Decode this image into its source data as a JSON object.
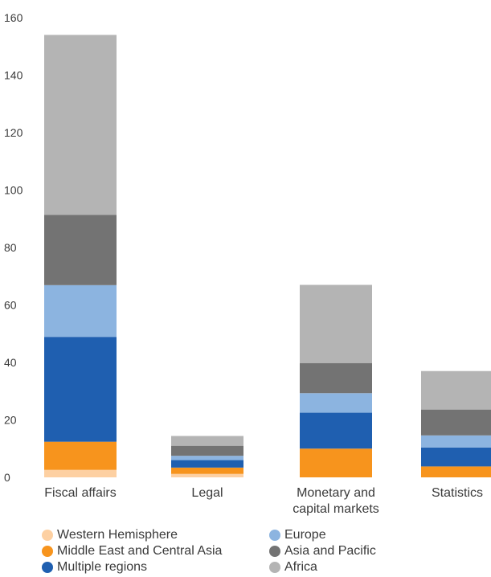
{
  "chart_data": {
    "type": "bar",
    "stacked": true,
    "categories": [
      [
        "Fiscal affairs"
      ],
      [
        "Legal"
      ],
      [
        "Monetary and",
        "capital markets"
      ],
      [
        "Statistics"
      ]
    ],
    "series": [
      {
        "name": "Western Hemisphere",
        "color": "#fdd0a2",
        "values": [
          2.6,
          1.2,
          0,
          0
        ]
      },
      {
        "name": "Middle East and Central Asia",
        "color": "#f7941d",
        "values": [
          9.8,
          2.2,
          10,
          3.8
        ]
      },
      {
        "name": "Multiple regions",
        "color": "#1f5fb0",
        "values": [
          36.5,
          2.6,
          12.5,
          6.6
        ]
      },
      {
        "name": "Europe",
        "color": "#8cb4e0",
        "values": [
          18,
          1.5,
          6.8,
          4.2
        ]
      },
      {
        "name": "Asia and Pacific",
        "color": "#737373",
        "values": [
          24.5,
          3.5,
          10.5,
          9
        ]
      },
      {
        "name": "Africa",
        "color": "#b4b4b4",
        "values": [
          62.6,
          3.4,
          27.2,
          13.4
        ]
      }
    ],
    "yticks": [
      "0",
      "20",
      "40",
      "60",
      "80",
      "100",
      "120",
      "140",
      "160"
    ],
    "ylim": [
      0,
      160
    ],
    "grid": false,
    "legend_position": "bottom"
  }
}
